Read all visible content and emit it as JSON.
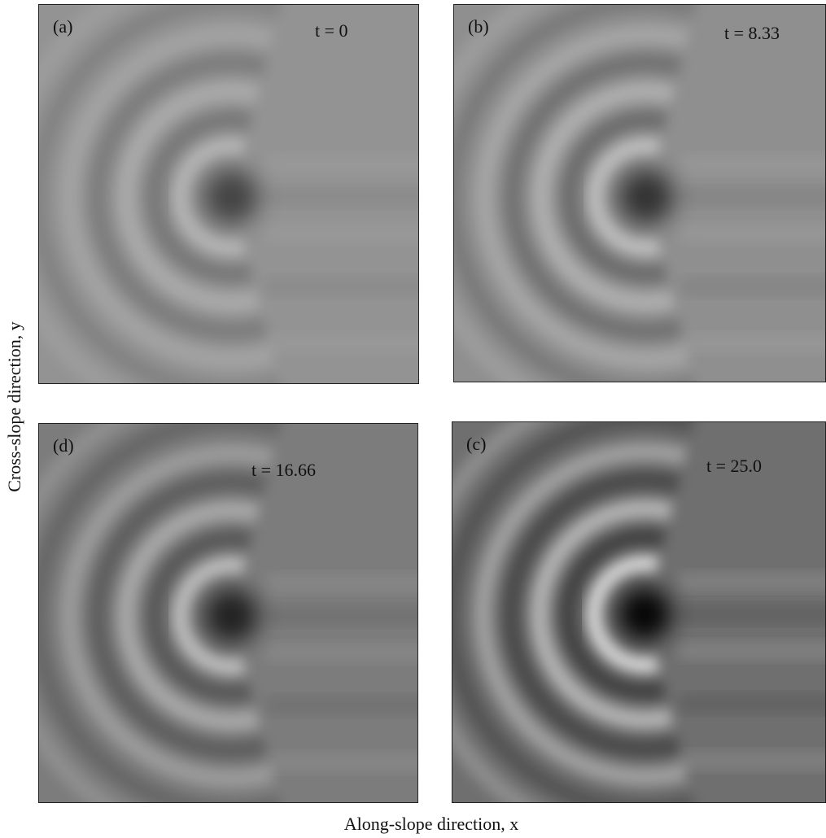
{
  "panels": [
    {
      "label": "(a)",
      "time": "t = 0"
    },
    {
      "label": "(b)",
      "time": "t = 8.33"
    },
    {
      "label": "(d)",
      "time": "t = 16.66"
    },
    {
      "label": "(c)",
      "time": "t = 25.0"
    }
  ],
  "axis_labels": {
    "y": "Cross-slope direction, y",
    "x": "Along-slope direction, x"
  }
}
